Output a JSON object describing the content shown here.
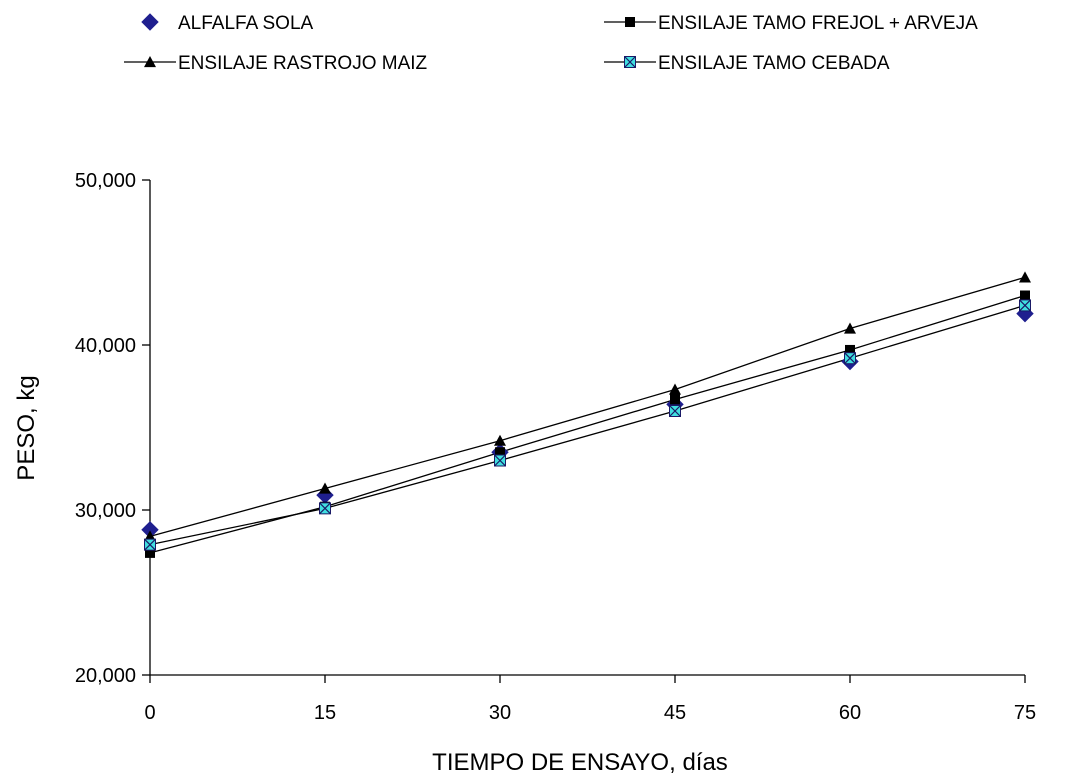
{
  "chart_data": {
    "type": "line",
    "title": "",
    "xlabel": "TIEMPO DE ENSAYO, días",
    "ylabel": "PESO, kg",
    "x": [
      0,
      15,
      30,
      45,
      60,
      75
    ],
    "x_tick_labels": [
      "0",
      "15",
      "30",
      "45",
      "60",
      "75"
    ],
    "xlim": [
      0,
      75
    ],
    "ylim": [
      20000,
      50000
    ],
    "y_ticks": [
      20000,
      30000,
      40000,
      50000
    ],
    "y_tick_labels": [
      "20,000",
      "30,000",
      "40,000",
      "50,000"
    ],
    "grid": false,
    "legend_position": "top",
    "series": [
      {
        "name": "ALFALFA SOLA",
        "values": [
          28800,
          30900,
          33500,
          36400,
          39000,
          41900
        ],
        "marker": "diamond",
        "marker_color": "#1f1f8f",
        "line": false
      },
      {
        "name": "ENSILAJE TAMO FREJOL + ARVEJA",
        "values": [
          27400,
          30200,
          33500,
          36700,
          39700,
          43000
        ],
        "marker": "square",
        "marker_color": "#000000",
        "line": true
      },
      {
        "name": "ENSILAJE RASTROJO MAIZ",
        "values": [
          28400,
          31300,
          34200,
          37300,
          41000,
          44100
        ],
        "marker": "triangle",
        "marker_color": "#000000",
        "line": true
      },
      {
        "name": "ENSILAJE TAMO CEBADA",
        "values": [
          27900,
          30100,
          33000,
          36000,
          39200,
          42400
        ],
        "marker": "x-square",
        "marker_color": "#40e0e0",
        "line": true
      }
    ]
  }
}
